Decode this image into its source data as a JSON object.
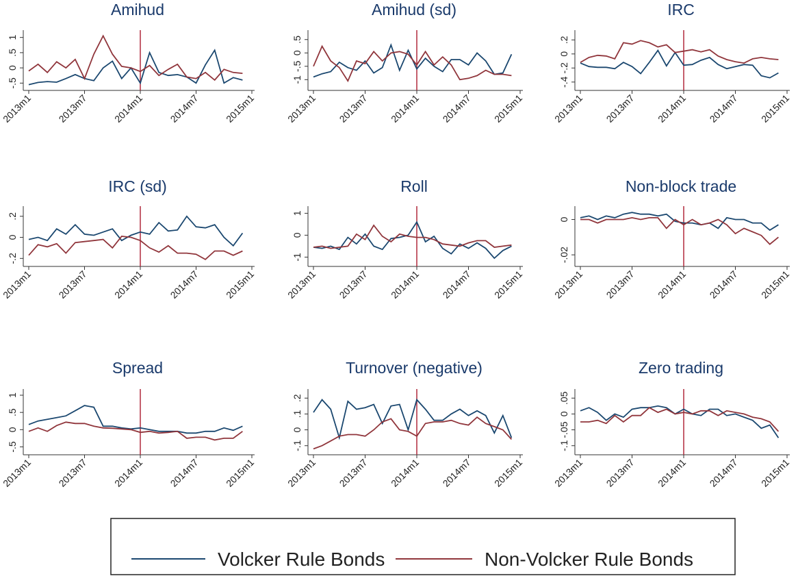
{
  "legend": [
    {
      "name": "Volcker Rule Bonds",
      "color": "#1a476f"
    },
    {
      "name": "Non-Volcker Rule Bonds",
      "color": "#90353b"
    }
  ],
  "vline": {
    "category": 12,
    "color": "#b0283a"
  },
  "chart_data": [
    {
      "type": "line",
      "title": "Amihud",
      "x": [
        "2013m1",
        null,
        null,
        null,
        null,
        null,
        "2013m7",
        null,
        null,
        null,
        null,
        null,
        "2014m1",
        null,
        null,
        null,
        null,
        null,
        "2014m7",
        null,
        null,
        null,
        null,
        null,
        "2015m1"
      ],
      "series": [
        {
          "values": [
            -0.55,
            -0.48,
            -0.45,
            -0.47,
            -0.35,
            -0.22,
            -0.35,
            -0.42,
            0.0,
            0.22,
            -0.35,
            0.0,
            -0.5,
            0.5,
            -0.15,
            -0.25,
            -0.22,
            -0.3,
            -0.5,
            0.1,
            0.58,
            -0.5,
            -0.32,
            -0.4,
            null
          ]
        },
        {
          "values": [
            -0.1,
            0.12,
            -0.15,
            0.2,
            0.0,
            0.28,
            -0.35,
            0.45,
            1.05,
            0.45,
            0.05,
            0.0,
            -0.12,
            0.08,
            -0.25,
            -0.05,
            0.12,
            -0.3,
            -0.35,
            -0.15,
            -0.4,
            -0.05,
            -0.15,
            -0.18,
            null
          ]
        }
      ],
      "ylim": [
        -0.65,
        1.15
      ],
      "yticks": [
        {
          "value": -0.5,
          "label": "-.5"
        },
        0,
        {
          "value": 0.5,
          "label": ".5"
        },
        1
      ]
    },
    {
      "type": "line",
      "title": "Amihud (sd)",
      "x": [
        "2013m1",
        null,
        null,
        null,
        null,
        null,
        "2013m7",
        null,
        null,
        null,
        null,
        null,
        "2014m1",
        null,
        null,
        null,
        null,
        null,
        "2014m7",
        null,
        null,
        null,
        null,
        null,
        "2015m1"
      ],
      "series": [
        {
          "values": [
            -0.9,
            -0.78,
            -0.7,
            -0.35,
            -0.55,
            -0.65,
            -0.3,
            -0.75,
            -0.55,
            0.3,
            -0.65,
            0.1,
            -0.6,
            -0.2,
            -0.5,
            -0.7,
            -0.25,
            -0.25,
            -0.45,
            0.0,
            -0.3,
            -0.8,
            -0.75,
            -0.05,
            null
          ]
        },
        {
          "values": [
            -0.5,
            0.25,
            -0.3,
            -0.55,
            -1.05,
            -0.3,
            -0.4,
            0.05,
            -0.3,
            0.0,
            0.05,
            -0.05,
            -0.45,
            0.05,
            -0.45,
            -0.15,
            -0.45,
            -1.0,
            -0.95,
            -0.85,
            -0.65,
            -0.8,
            -0.8,
            -0.85,
            null
          ]
        }
      ],
      "ylim": [
        -1.3,
        0.75
      ],
      "yticks": [
        -1,
        {
          "value": -0.5,
          "label": "-.5"
        },
        0,
        {
          "value": 0.5,
          "label": ".5"
        }
      ]
    },
    {
      "type": "line",
      "title": "IRC",
      "x": [
        "2013m1",
        null,
        null,
        null,
        null,
        null,
        "2013m7",
        null,
        null,
        null,
        null,
        null,
        "2014m1",
        null,
        null,
        null,
        null,
        null,
        "2014m7",
        null,
        null,
        null,
        null,
        null,
        "2015m1"
      ],
      "series": [
        {
          "values": [
            -0.13,
            -0.18,
            -0.19,
            -0.19,
            -0.21,
            -0.12,
            -0.18,
            -0.28,
            -0.12,
            0.05,
            -0.17,
            0.02,
            -0.16,
            -0.15,
            -0.09,
            -0.05,
            -0.15,
            -0.21,
            -0.18,
            -0.15,
            -0.16,
            -0.31,
            -0.34,
            -0.27,
            null
          ]
        },
        {
          "values": [
            -0.12,
            -0.05,
            -0.02,
            -0.03,
            -0.07,
            0.16,
            0.14,
            0.19,
            0.16,
            0.1,
            0.13,
            0.02,
            0.04,
            0.06,
            0.03,
            0.06,
            -0.03,
            -0.08,
            -0.11,
            -0.13,
            -0.07,
            -0.05,
            -0.07,
            -0.08,
            null
          ]
        }
      ],
      "ylim": [
        -0.48,
        0.3
      ],
      "yticks": [
        {
          "value": -0.4,
          "label": "-.4"
        },
        {
          "value": -0.2,
          "label": "-.2"
        },
        0,
        {
          "value": 0.2,
          "label": ".2"
        }
      ]
    },
    {
      "type": "line",
      "title": "IRC (sd)",
      "x": [
        "2013m1",
        null,
        null,
        null,
        null,
        null,
        "2013m7",
        null,
        null,
        null,
        null,
        null,
        "2014m1",
        null,
        null,
        null,
        null,
        null,
        "2014m7",
        null,
        null,
        null,
        null,
        null,
        "2015m1"
      ],
      "series": [
        {
          "values": [
            -0.02,
            0.0,
            -0.03,
            0.08,
            0.03,
            0.12,
            0.03,
            0.02,
            0.05,
            0.08,
            -0.03,
            0.02,
            0.05,
            0.03,
            0.14,
            0.06,
            0.07,
            0.2,
            0.1,
            0.09,
            0.12,
            0.0,
            -0.08,
            0.04,
            null
          ]
        },
        {
          "values": [
            -0.17,
            -0.07,
            -0.09,
            -0.06,
            -0.15,
            -0.05,
            -0.04,
            -0.03,
            -0.02,
            -0.1,
            0.01,
            0.0,
            -0.03,
            -0.1,
            -0.14,
            -0.08,
            -0.15,
            -0.15,
            -0.16,
            -0.21,
            -0.13,
            -0.13,
            -0.17,
            -0.13,
            null
          ]
        }
      ],
      "ylim": [
        -0.25,
        0.27
      ],
      "yticks": [
        {
          "value": -0.2,
          "label": "-.2"
        },
        0,
        {
          "value": 0.2,
          "label": ".2"
        }
      ]
    },
    {
      "type": "line",
      "title": "Roll",
      "x": [
        "2013m1",
        null,
        null,
        null,
        null,
        null,
        "2013m7",
        null,
        null,
        null,
        null,
        null,
        "2014m1",
        null,
        null,
        null,
        null,
        null,
        "2014m7",
        null,
        null,
        null,
        null,
        null,
        "2015m1"
      ],
      "series": [
        {
          "values": [
            -0.55,
            -0.6,
            -0.5,
            -0.65,
            -0.1,
            -0.4,
            0.05,
            -0.5,
            -0.65,
            -0.15,
            -0.1,
            0.0,
            0.6,
            -0.3,
            -0.05,
            -0.6,
            -0.85,
            -0.4,
            -0.6,
            -0.35,
            -0.6,
            -1.05,
            -0.7,
            -0.5,
            null
          ]
        },
        {
          "values": [
            -0.55,
            -0.5,
            -0.6,
            -0.55,
            -0.5,
            0.05,
            -0.2,
            0.45,
            -0.05,
            -0.3,
            0.05,
            -0.05,
            -0.1,
            -0.1,
            -0.2,
            -0.4,
            -0.45,
            -0.5,
            -0.35,
            -0.25,
            -0.25,
            -0.55,
            -0.5,
            -0.45,
            null
          ]
        }
      ],
      "ylim": [
        -1.3,
        1.2
      ],
      "yticks": [
        -1,
        0,
        1
      ]
    },
    {
      "type": "line",
      "title": "Non-block trade",
      "x": [
        "2013m1",
        null,
        null,
        null,
        null,
        null,
        "2013m7",
        null,
        null,
        null,
        null,
        null,
        "2014m1",
        null,
        null,
        null,
        null,
        null,
        "2014m7",
        null,
        null,
        null,
        null,
        null,
        "2015m1"
      ],
      "series": [
        {
          "values": [
            0.001,
            0.002,
            0.0,
            0.002,
            0.001,
            0.003,
            0.004,
            0.003,
            0.003,
            0.002,
            0.003,
            -0.001,
            -0.002,
            -0.002,
            -0.003,
            -0.002,
            -0.005,
            0.001,
            0.0,
            0.0,
            -0.002,
            -0.002,
            -0.006,
            -0.003,
            null
          ]
        },
        {
          "values": [
            0.0,
            0.0,
            -0.002,
            0.0,
            0.0,
            0.0,
            0.001,
            0.0,
            0.001,
            0.001,
            -0.005,
            0.0,
            -0.003,
            0.0,
            -0.003,
            -0.002,
            0.0,
            -0.003,
            -0.008,
            -0.005,
            -0.007,
            -0.009,
            -0.014,
            -0.01,
            null
          ]
        }
      ],
      "ylim": [
        -0.025,
        0.006
      ],
      "yticks": [
        {
          "value": -0.02,
          "label": "-.02"
        },
        0
      ]
    },
    {
      "type": "line",
      "title": "Spread",
      "x": [
        "2013m1",
        null,
        null,
        null,
        null,
        null,
        "2013m7",
        null,
        null,
        null,
        null,
        null,
        "2014m1",
        null,
        null,
        null,
        null,
        null,
        "2014m7",
        null,
        null,
        null,
        null,
        null,
        "2015m1"
      ],
      "series": [
        {
          "values": [
            0.15,
            0.25,
            0.3,
            0.35,
            0.4,
            0.55,
            0.7,
            0.65,
            0.1,
            0.1,
            0.05,
            0.02,
            0.05,
            0.0,
            -0.05,
            -0.05,
            -0.05,
            -0.1,
            -0.1,
            -0.05,
            -0.05,
            0.05,
            -0.02,
            0.1,
            null
          ]
        },
        {
          "values": [
            -0.05,
            0.05,
            -0.05,
            0.12,
            0.22,
            0.18,
            0.18,
            0.1,
            0.05,
            0.04,
            0.02,
            0.0,
            -0.08,
            -0.05,
            -0.1,
            -0.08,
            -0.05,
            -0.25,
            -0.22,
            -0.22,
            -0.3,
            -0.25,
            -0.25,
            -0.05,
            null
          ]
        }
      ],
      "ylim": [
        -0.65,
        1.1
      ],
      "yticks": [
        {
          "value": -0.5,
          "label": "-.5"
        },
        0,
        {
          "value": 0.5,
          "label": ".5"
        },
        1
      ]
    },
    {
      "type": "line",
      "title": "Turnover (negative)",
      "x": [
        "2013m1",
        null,
        null,
        null,
        null,
        null,
        "2013m7",
        null,
        null,
        null,
        null,
        null,
        "2014m1",
        null,
        null,
        null,
        null,
        null,
        "2014m7",
        null,
        null,
        null,
        null,
        null,
        "2015m1"
      ],
      "series": [
        {
          "values": [
            0.11,
            0.19,
            0.13,
            -0.05,
            0.18,
            0.13,
            0.14,
            0.16,
            0.04,
            0.15,
            0.16,
            0.0,
            0.19,
            0.13,
            0.06,
            0.06,
            0.1,
            0.13,
            0.09,
            0.12,
            0.09,
            -0.02,
            0.09,
            -0.05,
            null
          ]
        },
        {
          "values": [
            -0.12,
            -0.1,
            -0.07,
            -0.04,
            -0.03,
            -0.03,
            -0.04,
            0.0,
            0.05,
            0.07,
            0.0,
            -0.01,
            -0.04,
            0.04,
            0.05,
            0.05,
            0.06,
            0.04,
            0.03,
            0.08,
            0.04,
            0.02,
            0.0,
            -0.06,
            null
          ]
        }
      ],
      "ylim": [
        -0.14,
        0.24
      ],
      "yticks": [
        {
          "value": -0.1,
          "label": "-.1"
        },
        0,
        {
          "value": 0.1,
          "label": ".1"
        },
        {
          "value": 0.2,
          "label": ".2"
        }
      ]
    },
    {
      "type": "line",
      "title": "Zero trading",
      "x": [
        "2013m1",
        null,
        null,
        null,
        null,
        null,
        "2013m7",
        null,
        null,
        null,
        null,
        null,
        "2014m1",
        null,
        null,
        null,
        null,
        null,
        "2014m7",
        null,
        null,
        null,
        null,
        null,
        "2015m1"
      ],
      "series": [
        {
          "values": [
            0.01,
            0.02,
            0.005,
            -0.02,
            0.0,
            -0.01,
            0.015,
            0.02,
            0.02,
            0.025,
            0.02,
            0.0,
            0.015,
            0.0,
            -0.005,
            0.015,
            0.015,
            -0.005,
            0.0,
            -0.01,
            -0.02,
            -0.045,
            -0.035,
            -0.075,
            null
          ]
        },
        {
          "values": [
            -0.025,
            -0.025,
            -0.02,
            -0.03,
            -0.005,
            -0.025,
            -0.005,
            -0.005,
            0.02,
            0.005,
            0.015,
            0.0,
            0.005,
            0.0,
            0.01,
            0.01,
            -0.005,
            0.01,
            0.005,
            0.0,
            -0.01,
            -0.015,
            -0.025,
            -0.055,
            null
          ]
        }
      ],
      "ylim": [
        -0.12,
        0.07
      ],
      "yticks": [
        {
          "value": -0.1,
          "label": "-.1"
        },
        {
          "value": -0.05,
          "label": "-.05"
        },
        0,
        {
          "value": 0.05,
          "label": ".05"
        }
      ]
    }
  ]
}
